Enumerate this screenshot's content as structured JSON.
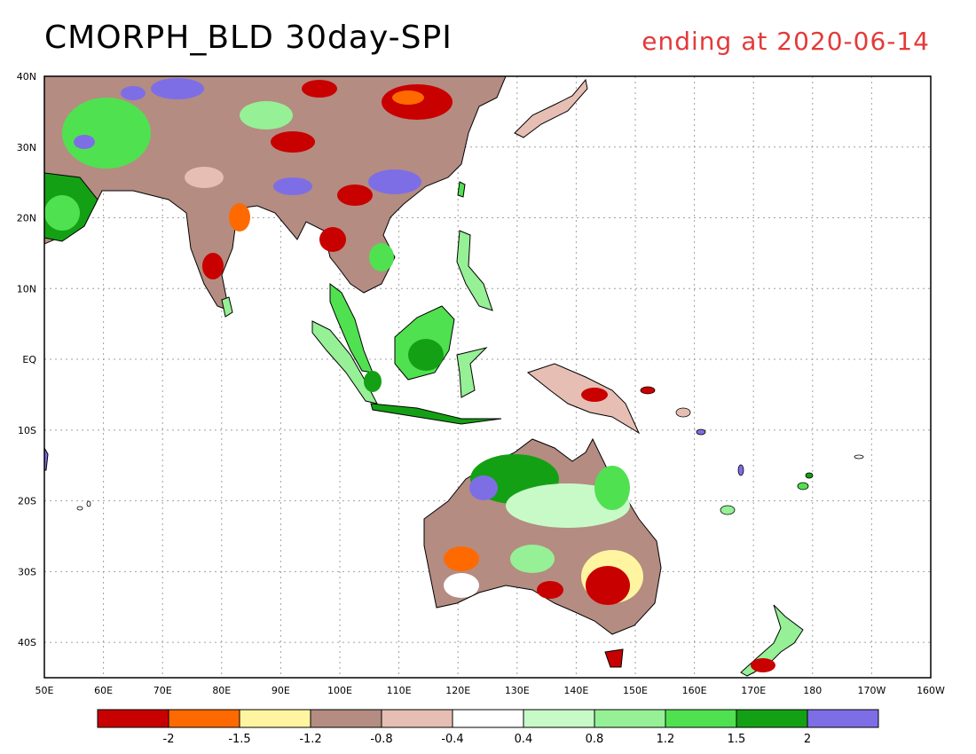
{
  "title": {
    "main": "CMORPH_BLD 30day-SPI",
    "date": "ending at 2020-06-14"
  },
  "map": {
    "lon_labels": [
      "50E",
      "60E",
      "70E",
      "80E",
      "90E",
      "100E",
      "110E",
      "120E",
      "130E",
      "140E",
      "150E",
      "160E",
      "170E",
      "180",
      "170W",
      "160W"
    ],
    "lat_labels": [
      "40N",
      "30N",
      "20N",
      "10N",
      "EQ",
      "10S",
      "20S",
      "30S",
      "40S"
    ],
    "lon_range": [
      50,
      200
    ],
    "lat_range": [
      -45,
      40
    ]
  },
  "colorbar": {
    "colors": [
      "#c80000",
      "#ff6a00",
      "#fff5a0",
      "#b48c82",
      "#e6beb4",
      "#ffffff",
      "#c8fac8",
      "#96f096",
      "#50e150",
      "#14a014",
      "#7d6ee6"
    ],
    "labels": [
      "-2",
      "-1.5",
      "-1.2",
      "-0.8",
      "-0.4",
      "0.4",
      "0.8",
      "1.2",
      "1.5",
      "2"
    ]
  }
}
